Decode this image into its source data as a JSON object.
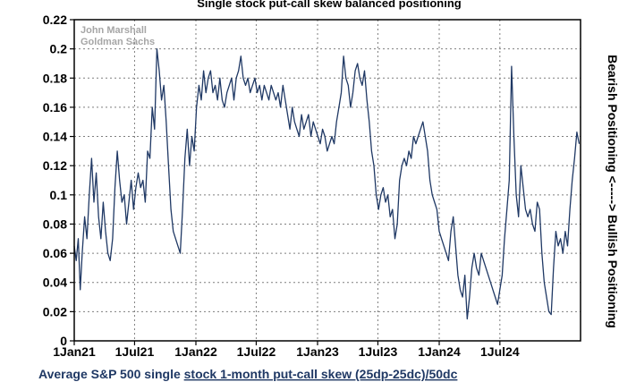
{
  "chart_data": {
    "type": "line",
    "title": "Single stock put-call skew balanced positioning",
    "xlabel_prefix": "Average S&P 500 single ",
    "xlabel_underlined": "stock 1-month put-call skew (25dp-25dc)/50dc",
    "ylabel_right": "Bearish Positioning <-----> Bullish Positioning",
    "watermark": [
      "John Marshall",
      "Goldman Sachs"
    ],
    "x_tick_labels": [
      "1Jan21",
      "1Jul21",
      "1Jan22",
      "1Jul22",
      "1Jan23",
      "1Jul23",
      "1Jan24",
      "1Jul24"
    ],
    "y_tick_labels": [
      "0",
      "0.02",
      "0.04",
      "0.06",
      "0.08",
      "0.1",
      "0.12",
      "0.14",
      "0.16",
      "0.18",
      "0.2",
      "0.22"
    ],
    "ylim": [
      0,
      0.22
    ],
    "xlim": [
      "2021-01-01",
      "2025-02-28"
    ],
    "grid": true,
    "series": [
      {
        "color": "#1f3864",
        "points": [
          [
            "2021-01-01",
            0.065
          ],
          [
            "2021-01-07",
            0.055
          ],
          [
            "2021-01-13",
            0.07
          ],
          [
            "2021-01-19",
            0.035
          ],
          [
            "2021-01-25",
            0.06
          ],
          [
            "2021-02-01",
            0.085
          ],
          [
            "2021-02-08",
            0.07
          ],
          [
            "2021-02-15",
            0.1
          ],
          [
            "2021-02-22",
            0.125
          ],
          [
            "2021-03-01",
            0.095
          ],
          [
            "2021-03-08",
            0.115
          ],
          [
            "2021-03-15",
            0.085
          ],
          [
            "2021-03-22",
            0.07
          ],
          [
            "2021-03-29",
            0.095
          ],
          [
            "2021-04-05",
            0.075
          ],
          [
            "2021-04-12",
            0.06
          ],
          [
            "2021-04-19",
            0.055
          ],
          [
            "2021-04-26",
            0.07
          ],
          [
            "2021-05-03",
            0.105
          ],
          [
            "2021-05-10",
            0.13
          ],
          [
            "2021-05-17",
            0.11
          ],
          [
            "2021-05-24",
            0.095
          ],
          [
            "2021-05-31",
            0.1
          ],
          [
            "2021-06-07",
            0.08
          ],
          [
            "2021-06-14",
            0.095
          ],
          [
            "2021-06-21",
            0.11
          ],
          [
            "2021-06-28",
            0.09
          ],
          [
            "2021-07-05",
            0.105
          ],
          [
            "2021-07-12",
            0.115
          ],
          [
            "2021-07-19",
            0.105
          ],
          [
            "2021-07-26",
            0.11
          ],
          [
            "2021-08-02",
            0.095
          ],
          [
            "2021-08-09",
            0.13
          ],
          [
            "2021-08-16",
            0.125
          ],
          [
            "2021-08-23",
            0.16
          ],
          [
            "2021-08-30",
            0.145
          ],
          [
            "2021-09-06",
            0.2
          ],
          [
            "2021-09-13",
            0.185
          ],
          [
            "2021-09-20",
            0.165
          ],
          [
            "2021-09-27",
            0.175
          ],
          [
            "2021-10-04",
            0.15
          ],
          [
            "2021-10-11",
            0.12
          ],
          [
            "2021-10-18",
            0.09
          ],
          [
            "2021-10-25",
            0.075
          ],
          [
            "2021-11-01",
            0.07
          ],
          [
            "2021-11-08",
            0.065
          ],
          [
            "2021-11-15",
            0.06
          ],
          [
            "2021-11-22",
            0.09
          ],
          [
            "2021-11-29",
            0.125
          ],
          [
            "2021-12-06",
            0.145
          ],
          [
            "2021-12-13",
            0.12
          ],
          [
            "2021-12-20",
            0.14
          ],
          [
            "2021-12-27",
            0.13
          ],
          [
            "2022-01-03",
            0.16
          ],
          [
            "2022-01-10",
            0.175
          ],
          [
            "2022-01-17",
            0.165
          ],
          [
            "2022-01-24",
            0.185
          ],
          [
            "2022-01-31",
            0.17
          ],
          [
            "2022-02-07",
            0.18
          ],
          [
            "2022-02-14",
            0.185
          ],
          [
            "2022-02-21",
            0.17
          ],
          [
            "2022-02-28",
            0.175
          ],
          [
            "2022-03-07",
            0.165
          ],
          [
            "2022-03-14",
            0.18
          ],
          [
            "2022-03-21",
            0.165
          ],
          [
            "2022-03-28",
            0.16
          ],
          [
            "2022-04-04",
            0.17
          ],
          [
            "2022-04-11",
            0.175
          ],
          [
            "2022-04-18",
            0.18
          ],
          [
            "2022-04-25",
            0.165
          ],
          [
            "2022-05-02",
            0.18
          ],
          [
            "2022-05-09",
            0.185
          ],
          [
            "2022-05-16",
            0.195
          ],
          [
            "2022-05-23",
            0.18
          ],
          [
            "2022-05-30",
            0.175
          ],
          [
            "2022-06-06",
            0.18
          ],
          [
            "2022-06-13",
            0.17
          ],
          [
            "2022-06-20",
            0.175
          ],
          [
            "2022-06-27",
            0.18
          ],
          [
            "2022-07-04",
            0.17
          ],
          [
            "2022-07-11",
            0.175
          ],
          [
            "2022-07-18",
            0.165
          ],
          [
            "2022-07-25",
            0.175
          ],
          [
            "2022-08-01",
            0.17
          ],
          [
            "2022-08-08",
            0.165
          ],
          [
            "2022-08-15",
            0.175
          ],
          [
            "2022-08-22",
            0.17
          ],
          [
            "2022-08-29",
            0.165
          ],
          [
            "2022-09-05",
            0.17
          ],
          [
            "2022-09-12",
            0.16
          ],
          [
            "2022-09-19",
            0.175
          ],
          [
            "2022-09-26",
            0.165
          ],
          [
            "2022-10-03",
            0.155
          ],
          [
            "2022-10-10",
            0.145
          ],
          [
            "2022-10-17",
            0.16
          ],
          [
            "2022-10-24",
            0.15
          ],
          [
            "2022-10-31",
            0.145
          ],
          [
            "2022-11-07",
            0.14
          ],
          [
            "2022-11-14",
            0.155
          ],
          [
            "2022-11-21",
            0.145
          ],
          [
            "2022-11-28",
            0.15
          ],
          [
            "2022-12-05",
            0.155
          ],
          [
            "2022-12-12",
            0.14
          ],
          [
            "2022-12-19",
            0.15
          ],
          [
            "2022-12-26",
            0.145
          ],
          [
            "2023-01-02",
            0.14
          ],
          [
            "2023-01-09",
            0.135
          ],
          [
            "2023-01-16",
            0.145
          ],
          [
            "2023-01-23",
            0.14
          ],
          [
            "2023-01-30",
            0.13
          ],
          [
            "2023-02-06",
            0.135
          ],
          [
            "2023-02-13",
            0.14
          ],
          [
            "2023-02-20",
            0.135
          ],
          [
            "2023-02-27",
            0.15
          ],
          [
            "2023-03-06",
            0.16
          ],
          [
            "2023-03-13",
            0.17
          ],
          [
            "2023-03-20",
            0.195
          ],
          [
            "2023-03-27",
            0.18
          ],
          [
            "2023-04-03",
            0.175
          ],
          [
            "2023-04-10",
            0.16
          ],
          [
            "2023-04-17",
            0.17
          ],
          [
            "2023-04-24",
            0.185
          ],
          [
            "2023-05-01",
            0.19
          ],
          [
            "2023-05-08",
            0.18
          ],
          [
            "2023-05-15",
            0.175
          ],
          [
            "2023-05-22",
            0.185
          ],
          [
            "2023-05-29",
            0.165
          ],
          [
            "2023-06-05",
            0.15
          ],
          [
            "2023-06-12",
            0.13
          ],
          [
            "2023-06-19",
            0.12
          ],
          [
            "2023-06-26",
            0.1
          ],
          [
            "2023-07-03",
            0.09
          ],
          [
            "2023-07-10",
            0.1
          ],
          [
            "2023-07-17",
            0.105
          ],
          [
            "2023-07-24",
            0.095
          ],
          [
            "2023-07-31",
            0.1
          ],
          [
            "2023-08-07",
            0.085
          ],
          [
            "2023-08-14",
            0.09
          ],
          [
            "2023-08-21",
            0.07
          ],
          [
            "2023-08-28",
            0.08
          ],
          [
            "2023-09-04",
            0.11
          ],
          [
            "2023-09-11",
            0.12
          ],
          [
            "2023-09-18",
            0.125
          ],
          [
            "2023-09-25",
            0.12
          ],
          [
            "2023-10-02",
            0.13
          ],
          [
            "2023-10-09",
            0.125
          ],
          [
            "2023-10-16",
            0.14
          ],
          [
            "2023-10-23",
            0.135
          ],
          [
            "2023-10-30",
            0.14
          ],
          [
            "2023-11-06",
            0.145
          ],
          [
            "2023-11-13",
            0.15
          ],
          [
            "2023-11-20",
            0.14
          ],
          [
            "2023-11-27",
            0.13
          ],
          [
            "2023-12-04",
            0.11
          ],
          [
            "2023-12-11",
            0.1
          ],
          [
            "2023-12-18",
            0.095
          ],
          [
            "2023-12-25",
            0.09
          ],
          [
            "2024-01-01",
            0.075
          ],
          [
            "2024-01-08",
            0.07
          ],
          [
            "2024-01-15",
            0.065
          ],
          [
            "2024-01-22",
            0.06
          ],
          [
            "2024-01-29",
            0.055
          ],
          [
            "2024-02-05",
            0.075
          ],
          [
            "2024-02-12",
            0.085
          ],
          [
            "2024-02-19",
            0.065
          ],
          [
            "2024-02-26",
            0.045
          ],
          [
            "2024-03-04",
            0.035
          ],
          [
            "2024-03-11",
            0.03
          ],
          [
            "2024-03-18",
            0.045
          ],
          [
            "2024-03-25",
            0.015
          ],
          [
            "2024-04-01",
            0.03
          ],
          [
            "2024-04-08",
            0.05
          ],
          [
            "2024-04-15",
            0.06
          ],
          [
            "2024-04-22",
            0.05
          ],
          [
            "2024-04-29",
            0.045
          ],
          [
            "2024-05-06",
            0.06
          ],
          [
            "2024-05-13",
            0.055
          ],
          [
            "2024-05-20",
            0.05
          ],
          [
            "2024-05-27",
            0.045
          ],
          [
            "2024-06-03",
            0.04
          ],
          [
            "2024-06-10",
            0.035
          ],
          [
            "2024-06-17",
            0.03
          ],
          [
            "2024-06-24",
            0.025
          ],
          [
            "2024-07-01",
            0.035
          ],
          [
            "2024-07-08",
            0.045
          ],
          [
            "2024-07-15",
            0.07
          ],
          [
            "2024-07-22",
            0.09
          ],
          [
            "2024-07-29",
            0.11
          ],
          [
            "2024-08-05",
            0.188
          ],
          [
            "2024-08-12",
            0.14
          ],
          [
            "2024-08-19",
            0.1
          ],
          [
            "2024-08-26",
            0.085
          ],
          [
            "2024-09-02",
            0.12
          ],
          [
            "2024-09-09",
            0.105
          ],
          [
            "2024-09-16",
            0.09
          ],
          [
            "2024-09-23",
            0.085
          ],
          [
            "2024-09-30",
            0.09
          ],
          [
            "2024-10-07",
            0.08
          ],
          [
            "2024-10-14",
            0.075
          ],
          [
            "2024-10-21",
            0.095
          ],
          [
            "2024-10-28",
            0.09
          ],
          [
            "2024-11-04",
            0.06
          ],
          [
            "2024-11-11",
            0.04
          ],
          [
            "2024-11-18",
            0.03
          ],
          [
            "2024-11-25",
            0.02
          ],
          [
            "2024-12-02",
            0.018
          ],
          [
            "2024-12-09",
            0.05
          ],
          [
            "2024-12-16",
            0.075
          ],
          [
            "2024-12-23",
            0.065
          ],
          [
            "2024-12-30",
            0.07
          ],
          [
            "2025-01-06",
            0.06
          ],
          [
            "2025-01-13",
            0.075
          ],
          [
            "2025-01-20",
            0.065
          ],
          [
            "2025-01-27",
            0.09
          ],
          [
            "2025-02-03",
            0.11
          ],
          [
            "2025-02-10",
            0.125
          ],
          [
            "2025-02-17",
            0.143
          ],
          [
            "2025-02-24",
            0.135
          ]
        ]
      }
    ]
  }
}
